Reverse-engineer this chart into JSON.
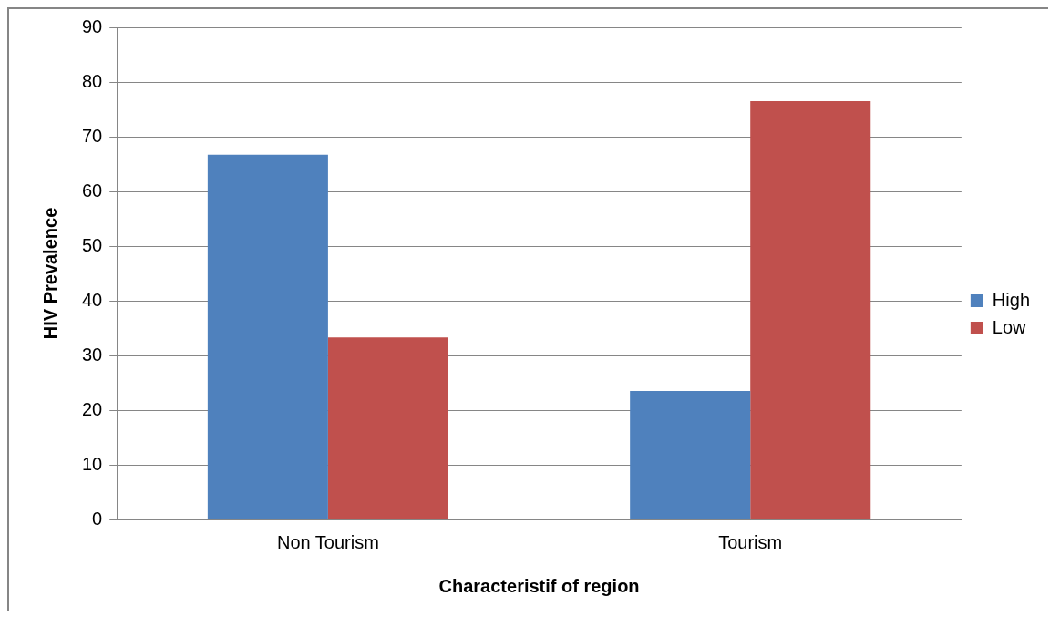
{
  "chart_data": {
    "type": "bar",
    "xlabel": "Characteristif of region",
    "ylabel": "HIV Prevalence",
    "categories": [
      "Non Tourism",
      "Tourism"
    ],
    "series": [
      {
        "name": "High",
        "color": "#4f81bd",
        "values": [
          66.7,
          23.5
        ]
      },
      {
        "name": "Low",
        "color": "#c0504d",
        "values": [
          33.3,
          76.5
        ]
      }
    ],
    "ylim": [
      0,
      90
    ],
    "yticks": [
      0,
      10,
      20,
      30,
      40,
      50,
      60,
      70,
      80,
      90
    ],
    "grid": "y",
    "legend": "right"
  }
}
